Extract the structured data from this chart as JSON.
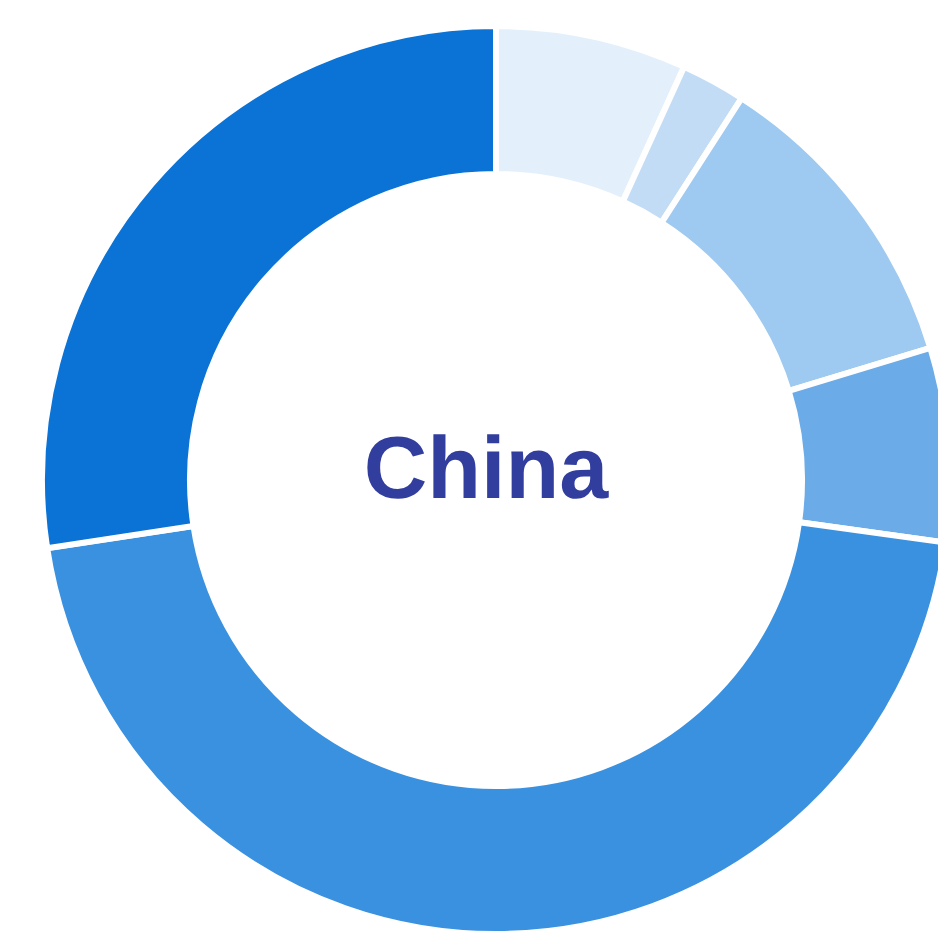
{
  "chart_data": {
    "type": "donut",
    "title": "China",
    "categories": [
      null,
      null,
      null,
      null,
      null,
      null
    ],
    "values": [
      6.8,
      2.3,
      11.2,
      6.9,
      45.4,
      27.4
    ],
    "colors": [
      "#e3f0fb",
      "#c3dcf5",
      "#9ec9f0",
      "#6aabe8",
      "#3a91e0",
      "#0b72d6"
    ]
  }
}
